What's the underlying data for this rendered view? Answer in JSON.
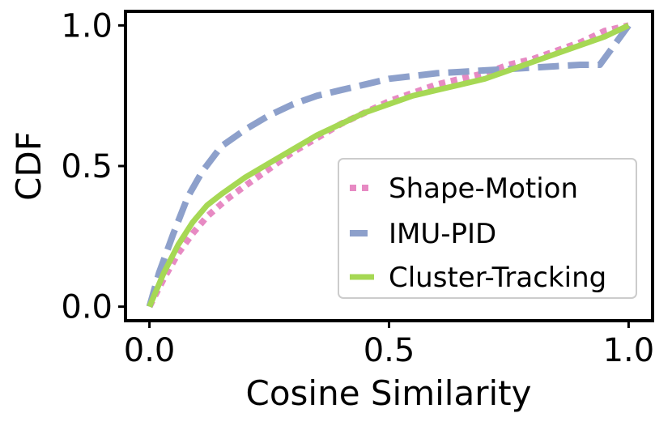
{
  "chart_data": {
    "type": "line",
    "title": "",
    "xlabel": "Cosine Similarity",
    "ylabel": "CDF",
    "xlim": [
      -0.05,
      1.05
    ],
    "ylim": [
      -0.05,
      1.05
    ],
    "xticks": [
      0.0,
      0.5,
      1.0
    ],
    "xtick_labels": [
      "0.0",
      "0.5",
      "1.0"
    ],
    "yticks": [
      0.0,
      0.5,
      1.0
    ],
    "ytick_labels": [
      "0.0",
      "0.5",
      "1.0"
    ],
    "grid": false,
    "legend_position": "lower-right",
    "series": [
      {
        "name": "Shape-Motion",
        "color": "#e78ac3",
        "style": "dotted",
        "x": [
          0.0,
          0.03,
          0.06,
          0.09,
          0.12,
          0.16,
          0.2,
          0.25,
          0.3,
          0.35,
          0.4,
          0.45,
          0.5,
          0.55,
          0.6,
          0.65,
          0.7,
          0.75,
          0.8,
          0.85,
          0.9,
          0.95,
          1.0
        ],
        "y": [
          0.0,
          0.1,
          0.19,
          0.26,
          0.32,
          0.38,
          0.43,
          0.49,
          0.55,
          0.6,
          0.65,
          0.69,
          0.73,
          0.76,
          0.79,
          0.81,
          0.83,
          0.86,
          0.88,
          0.91,
          0.94,
          0.98,
          1.0
        ]
      },
      {
        "name": "IMU-PID",
        "color": "#8da0cb",
        "style": "dashed",
        "x": [
          0.0,
          0.02,
          0.05,
          0.08,
          0.11,
          0.15,
          0.2,
          0.25,
          0.3,
          0.35,
          0.4,
          0.45,
          0.5,
          0.55,
          0.6,
          0.65,
          0.7,
          0.75,
          0.8,
          0.85,
          0.9,
          0.94,
          0.97,
          1.0
        ],
        "y": [
          0.0,
          0.12,
          0.26,
          0.39,
          0.48,
          0.57,
          0.63,
          0.68,
          0.72,
          0.75,
          0.77,
          0.79,
          0.81,
          0.82,
          0.83,
          0.835,
          0.84,
          0.845,
          0.85,
          0.855,
          0.86,
          0.86,
          0.93,
          1.0
        ]
      },
      {
        "name": "Cluster-Tracking",
        "color": "#a6d854",
        "style": "solid",
        "x": [
          0.0,
          0.03,
          0.06,
          0.09,
          0.12,
          0.15,
          0.2,
          0.25,
          0.3,
          0.35,
          0.4,
          0.45,
          0.5,
          0.55,
          0.6,
          0.65,
          0.7,
          0.75,
          0.8,
          0.85,
          0.9,
          0.95,
          1.0
        ],
        "y": [
          0.0,
          0.12,
          0.22,
          0.3,
          0.36,
          0.4,
          0.46,
          0.51,
          0.56,
          0.61,
          0.65,
          0.69,
          0.72,
          0.75,
          0.77,
          0.79,
          0.81,
          0.84,
          0.87,
          0.9,
          0.93,
          0.96,
          1.0
        ]
      }
    ]
  }
}
